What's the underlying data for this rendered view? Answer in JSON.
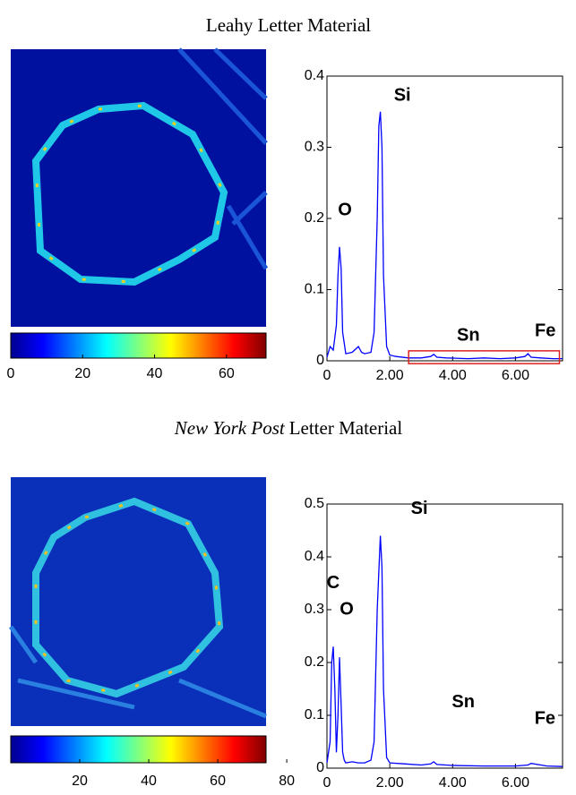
{
  "chart_data": [
    {
      "type": "line",
      "title": "Leahy Letter Material",
      "colorbar": {
        "xlim": [
          0,
          71
        ],
        "xticks": [
          0,
          20,
          40,
          60
        ]
      },
      "x": [
        0,
        0.1,
        0.2,
        0.3,
        0.35,
        0.4,
        0.45,
        0.5,
        0.6,
        0.8,
        1.0,
        1.1,
        1.2,
        1.4,
        1.5,
        1.6,
        1.65,
        1.7,
        1.75,
        1.8,
        1.9,
        2.0,
        2.2,
        2.6,
        3.0,
        3.3,
        3.4,
        3.5,
        3.8,
        4.5,
        5.0,
        5.5,
        6.0,
        6.3,
        6.4,
        6.5,
        6.8,
        7.2,
        7.5
      ],
      "values": [
        0.005,
        0.02,
        0.015,
        0.05,
        0.12,
        0.16,
        0.13,
        0.04,
        0.01,
        0.012,
        0.02,
        0.012,
        0.01,
        0.012,
        0.04,
        0.2,
        0.33,
        0.35,
        0.3,
        0.12,
        0.02,
        0.008,
        0.006,
        0.004,
        0.004,
        0.006,
        0.009,
        0.005,
        0.004,
        0.003,
        0.004,
        0.003,
        0.004,
        0.006,
        0.01,
        0.005,
        0.004,
        0.003,
        0.003
      ],
      "color": "#0000ff",
      "xlim": [
        0,
        7.5
      ],
      "xticks": [
        0,
        {
          "value": 2,
          "label": "2.00"
        },
        {
          "value": 4,
          "label": "4.00"
        },
        {
          "value": 6,
          "label": "6.00"
        }
      ],
      "ylim": [
        0,
        0.4
      ],
      "yticks": [
        0,
        0.1,
        0.2,
        0.3,
        0.4
      ],
      "annotations": [
        {
          "text": "Si",
          "x": 2.4,
          "y": 0.372
        },
        {
          "text": "O",
          "x": 0.57,
          "y": 0.211
        },
        {
          "text": "Sn",
          "x": 4.5,
          "y": 0.035
        },
        {
          "text": "Fe",
          "x": 6.95,
          "y": 0.041
        }
      ],
      "highlight": {
        "xlim": [
          2.6,
          7.4
        ],
        "ylim": [
          -0.004,
          0.014
        ],
        "color": "#e02020"
      }
    },
    {
      "type": "line",
      "title_italic": "New York Post",
      "title": "Letter Material",
      "colorbar": {
        "xlim": [
          0,
          74
        ],
        "xticks": [
          20,
          40,
          60,
          80
        ]
      },
      "x": [
        0,
        0.1,
        0.15,
        0.2,
        0.25,
        0.3,
        0.35,
        0.4,
        0.45,
        0.5,
        0.55,
        0.6,
        0.8,
        1.0,
        1.2,
        1.4,
        1.5,
        1.6,
        1.7,
        1.75,
        1.8,
        1.9,
        2.0,
        2.5,
        3.0,
        3.3,
        3.4,
        3.5,
        4.0,
        5.0,
        6.0,
        6.4,
        6.5,
        7.0,
        7.5
      ],
      "values": [
        0.01,
        0.05,
        0.2,
        0.23,
        0.15,
        0.03,
        0.1,
        0.21,
        0.12,
        0.03,
        0.015,
        0.01,
        0.012,
        0.01,
        0.01,
        0.015,
        0.05,
        0.3,
        0.44,
        0.38,
        0.15,
        0.02,
        0.01,
        0.008,
        0.006,
        0.008,
        0.012,
        0.007,
        0.005,
        0.004,
        0.004,
        0.006,
        0.009,
        0.004,
        0.003
      ],
      "color": "#0000ff",
      "xlim": [
        0,
        7.5
      ],
      "xticks": [
        0,
        {
          "value": 2,
          "label": "2.00"
        },
        {
          "value": 4,
          "label": "4.00"
        },
        {
          "value": 6,
          "label": "6.00"
        }
      ],
      "ylim": [
        0,
        0.5
      ],
      "yticks": [
        0,
        0.1,
        0.2,
        0.3,
        0.4,
        0.5
      ],
      "annotations": [
        {
          "text": "Si",
          "x": 2.94,
          "y": 0.49
        },
        {
          "text": "C",
          "x": 0.2,
          "y": 0.35
        },
        {
          "text": "O",
          "x": 0.63,
          "y": 0.3
        },
        {
          "text": "Sn",
          "x": 4.34,
          "y": 0.124
        },
        {
          "text": "Fe",
          "x": 6.94,
          "y": 0.093
        }
      ]
    }
  ]
}
